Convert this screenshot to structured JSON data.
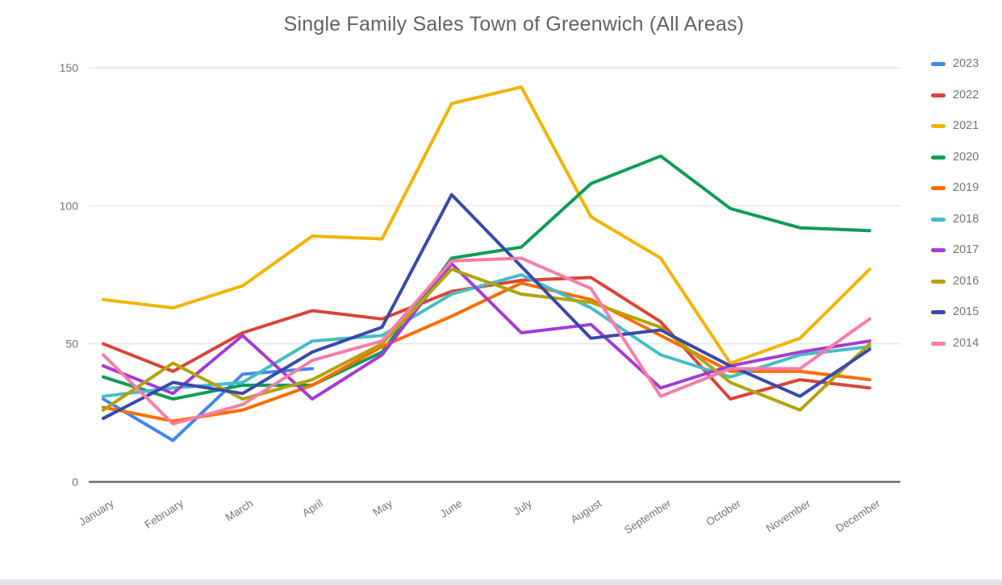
{
  "title": "Single Family Sales Town of Greenwich (All Areas)",
  "chart_data": {
    "type": "line",
    "title": "Single Family Sales Town of Greenwich (All Areas)",
    "xlabel": "",
    "ylabel": "",
    "ylim": [
      0,
      150
    ],
    "yticks": [
      0,
      50,
      100,
      150
    ],
    "grid": true,
    "legend_position": "right",
    "categories": [
      "January",
      "February",
      "March",
      "April",
      "May",
      "June",
      "July",
      "August",
      "September",
      "October",
      "November",
      "December"
    ],
    "series": [
      {
        "name": "2023",
        "color": "#4285F4",
        "values": [
          30,
          15,
          39,
          41,
          null,
          null,
          null,
          null,
          null,
          null,
          null,
          null
        ]
      },
      {
        "name": "2022",
        "color": "#DB4437",
        "values": [
          50,
          40,
          54,
          62,
          59,
          69,
          73,
          74,
          58,
          30,
          37,
          34
        ]
      },
      {
        "name": "2021",
        "color": "#F4B400",
        "values": [
          66,
          63,
          71,
          89,
          88,
          137,
          143,
          96,
          81,
          43,
          52,
          77
        ]
      },
      {
        "name": "2020",
        "color": "#0F9D58",
        "values": [
          38,
          30,
          35,
          35,
          47,
          81,
          85,
          108,
          118,
          99,
          92,
          91
        ]
      },
      {
        "name": "2019",
        "color": "#FF6D00",
        "values": [
          27,
          22,
          26,
          35,
          49,
          60,
          72,
          66,
          53,
          40,
          40,
          37
        ]
      },
      {
        "name": "2018",
        "color": "#46BDC6",
        "values": [
          31,
          34,
          36,
          51,
          53,
          68,
          75,
          63,
          46,
          38,
          46,
          49
        ]
      },
      {
        "name": "2017",
        "color": "#A63BD4",
        "values": [
          42,
          32,
          53,
          30,
          46,
          79,
          54,
          57,
          34,
          42,
          47,
          51
        ]
      },
      {
        "name": "2016",
        "color": "#B3A30C",
        "values": [
          26,
          43,
          30,
          37,
          50,
          77,
          68,
          65,
          56,
          36,
          26,
          50
        ]
      },
      {
        "name": "2015",
        "color": "#3949AB",
        "values": [
          23,
          36,
          32,
          47,
          56,
          104,
          78,
          52,
          55,
          42,
          31,
          48
        ]
      },
      {
        "name": "2014",
        "color": "#F97CA9",
        "values": [
          46,
          21,
          28,
          44,
          51,
          80,
          81,
          70,
          31,
          41,
          41,
          59
        ]
      }
    ]
  }
}
